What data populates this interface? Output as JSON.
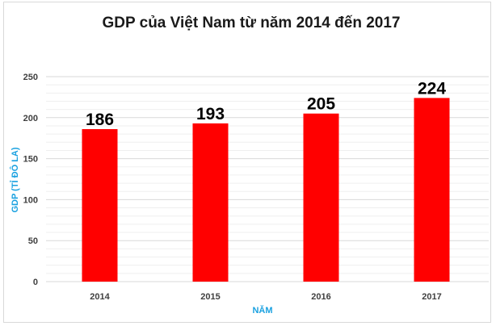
{
  "chart_data": {
    "type": "bar",
    "title": "GDP của Việt Nam từ năm 2014 đến 2017",
    "xlabel": "NĂM",
    "ylabel": "GDP (TỈ ĐÔ LA)",
    "categories": [
      "2014",
      "2015",
      "2016",
      "2017"
    ],
    "values": [
      186,
      193,
      205,
      224
    ],
    "data_labels": [
      "186",
      "193",
      "205",
      "224"
    ],
    "ylim": [
      0,
      250
    ],
    "yticks": [
      0,
      50,
      100,
      150,
      200,
      250
    ],
    "ytick_labels": [
      "0",
      "50",
      "100",
      "150",
      "200",
      "250"
    ],
    "grid": true,
    "bar_color": "#ff0000",
    "legend": "none"
  }
}
